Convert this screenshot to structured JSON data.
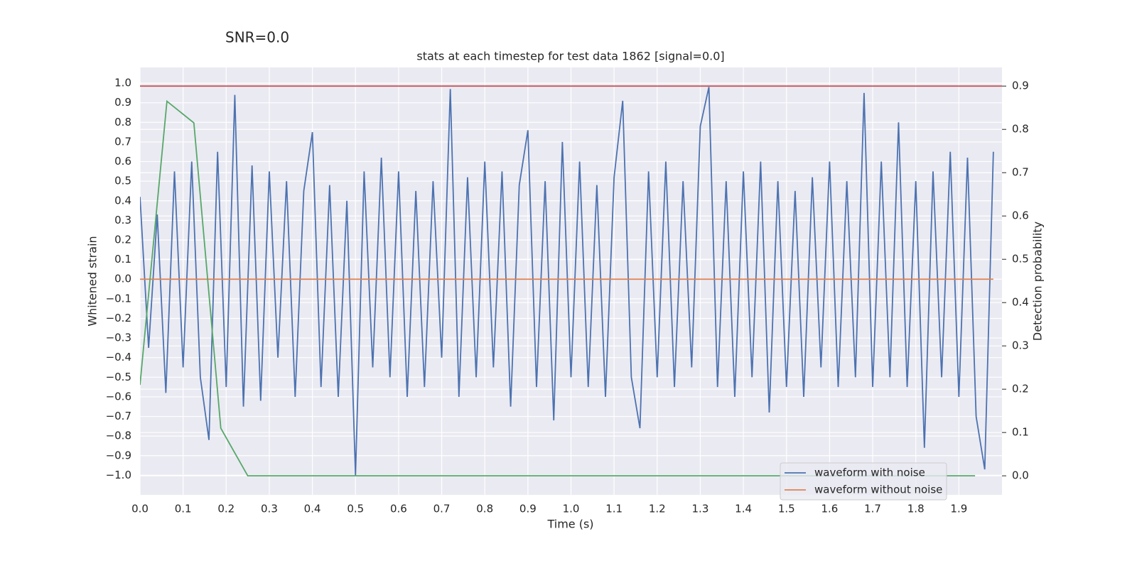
{
  "chart_data": {
    "type": "line",
    "suptitle": "SNR=0.0",
    "title": "stats at each timestep for test data 1862 [signal=0.0]",
    "xlabel": "Time (s)",
    "ylabel": "Whitened strain",
    "y2label": "Detection probability",
    "xlim": [
      0,
      2.0
    ],
    "ylim": [
      -1.1,
      1.08
    ],
    "y2lim": [
      -0.044,
      0.943
    ],
    "xticks": [
      {
        "value": 0,
        "label": "0.0"
      },
      0.1,
      0.2,
      0.3,
      0.4,
      0.5,
      0.6,
      0.7,
      0.8,
      0.9,
      {
        "value": 1,
        "label": "1.0"
      },
      1.1,
      1.2,
      1.3,
      1.4,
      1.5,
      1.6,
      1.7,
      1.8,
      1.9
    ],
    "yticks": [
      {
        "value": -1,
        "label": "−1.0"
      },
      {
        "value": -0.9,
        "label": "−0.9"
      },
      {
        "value": -0.8,
        "label": "−0.8"
      },
      {
        "value": -0.7,
        "label": "−0.7"
      },
      {
        "value": -0.6,
        "label": "−0.6"
      },
      {
        "value": -0.5,
        "label": "−0.5"
      },
      {
        "value": -0.4,
        "label": "−0.4"
      },
      {
        "value": -0.3,
        "label": "−0.3"
      },
      {
        "value": -0.2,
        "label": "−0.2"
      },
      {
        "value": -0.1,
        "label": "−0.1"
      },
      {
        "value": 0,
        "label": "0.0"
      },
      0.1,
      0.2,
      0.3,
      0.4,
      0.5,
      0.6,
      0.7,
      0.8,
      0.9,
      {
        "value": 1,
        "label": "1.0"
      }
    ],
    "y2ticks": [
      {
        "value": 0,
        "label": "0.0"
      },
      0.1,
      0.2,
      0.3,
      0.4,
      0.5,
      0.6,
      0.7,
      0.8,
      0.9
    ],
    "grid": true,
    "legend": "lower right",
    "series": [
      {
        "name": "waveform with noise",
        "color": "#4c72b0",
        "x": [
          0,
          0.02,
          0.04,
          0.06,
          0.08,
          0.1,
          0.12,
          0.14,
          0.16,
          0.18,
          0.2,
          0.22,
          0.24,
          0.26,
          0.28,
          0.3,
          0.32,
          0.34,
          0.36,
          0.38,
          0.4,
          0.42,
          0.44,
          0.46,
          0.48,
          0.5,
          0.52,
          0.54,
          0.56,
          0.58,
          0.6,
          0.62,
          0.64,
          0.66,
          0.68,
          0.7,
          0.72,
          0.74,
          0.76,
          0.78,
          0.8,
          0.82,
          0.84,
          0.86,
          0.88,
          0.9,
          0.92,
          0.94,
          0.96,
          0.98,
          1.0,
          1.02,
          1.04,
          1.06,
          1.08,
          1.1,
          1.12,
          1.14,
          1.16,
          1.18,
          1.2,
          1.22,
          1.24,
          1.26,
          1.28,
          1.3,
          1.32,
          1.34,
          1.36,
          1.38,
          1.4,
          1.42,
          1.44,
          1.46,
          1.48,
          1.5,
          1.52,
          1.54,
          1.56,
          1.58,
          1.6,
          1.62,
          1.64,
          1.66,
          1.68,
          1.7,
          1.72,
          1.74,
          1.76,
          1.78,
          1.8,
          1.82,
          1.84,
          1.86,
          1.88,
          1.9,
          1.92,
          1.94,
          1.96,
          1.98
        ],
        "values": [
          0.42,
          -0.35,
          0.33,
          -0.58,
          0.55,
          -0.45,
          0.6,
          -0.5,
          -0.82,
          0.65,
          -0.55,
          0.94,
          -0.65,
          0.58,
          -0.62,
          0.55,
          -0.4,
          0.5,
          -0.6,
          0.45,
          0.75,
          -0.55,
          0.48,
          -0.6,
          0.4,
          -1.0,
          0.55,
          -0.45,
          0.62,
          -0.5,
          0.55,
          -0.6,
          0.45,
          -0.55,
          0.5,
          -0.4,
          0.97,
          -0.6,
          0.52,
          -0.5,
          0.6,
          -0.45,
          0.55,
          -0.65,
          0.48,
          0.76,
          -0.55,
          0.5,
          -0.72,
          0.7,
          -0.5,
          0.6,
          -0.55,
          0.48,
          -0.6,
          0.52,
          0.91,
          -0.5,
          -0.76,
          0.55,
          -0.5,
          0.6,
          -0.55,
          0.5,
          -0.45,
          0.78,
          0.98,
          -0.55,
          0.5,
          -0.6,
          0.55,
          -0.5,
          0.6,
          -0.68,
          0.5,
          -0.55,
          0.45,
          -0.6,
          0.52,
          -0.45,
          0.6,
          -0.55,
          0.5,
          -0.5,
          0.95,
          -0.55,
          0.6,
          -0.5,
          0.8,
          -0.55,
          0.5,
          -0.86,
          0.55,
          -0.5,
          0.65,
          -0.6,
          0.62,
          -0.7,
          -0.97,
          0.65
        ]
      },
      {
        "name": "waveform without noise",
        "color": "#dd8452",
        "x": [
          0,
          1.98
        ],
        "values": [
          0,
          0
        ]
      },
      {
        "color": "#55a868",
        "axis": "y2",
        "x": [
          0,
          0.0625,
          0.125,
          0.1875,
          0.25,
          0.3125,
          0.375,
          0.4375,
          0.5,
          0.5625,
          0.625,
          0.6875,
          0.75,
          0.8125,
          0.875,
          0.9375,
          1.0,
          1.0625,
          1.125,
          1.1875,
          1.25,
          1.3125,
          1.375,
          1.4375,
          1.5,
          1.5625,
          1.625,
          1.6875,
          1.75,
          1.8125,
          1.875,
          1.9375
        ],
        "values": [
          0.21,
          0.865,
          0.815,
          0.11,
          0,
          0,
          0,
          0,
          0,
          0,
          0,
          0,
          0,
          0,
          0,
          0,
          0,
          0,
          0,
          0,
          0,
          0,
          0,
          0,
          0,
          0,
          0,
          0,
          0,
          0,
          0,
          0
        ]
      }
    ],
    "hlines": [
      {
        "value": 0.9,
        "axis": "y2",
        "color": "#c44e52"
      }
    ]
  }
}
